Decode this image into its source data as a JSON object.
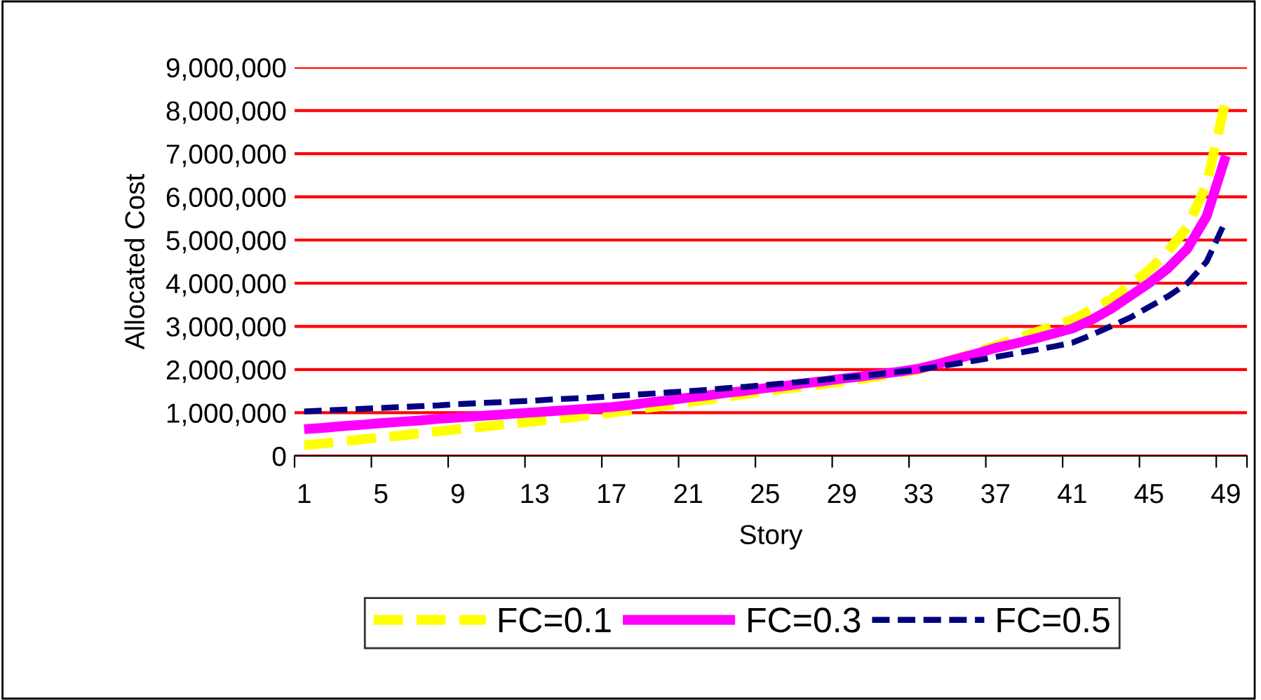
{
  "chart_data": {
    "type": "line",
    "xlabel": "Story",
    "ylabel": "Allocated Cost",
    "categories": [
      "1",
      null,
      null,
      null,
      "5",
      null,
      null,
      null,
      "9",
      null,
      null,
      null,
      "13",
      null,
      null,
      null,
      "17",
      null,
      null,
      null,
      "21",
      null,
      null,
      null,
      "25",
      null,
      null,
      null,
      "29",
      null,
      null,
      null,
      "33",
      null,
      null,
      null,
      "37",
      null,
      null,
      null,
      "41",
      null,
      null,
      null,
      "45",
      null,
      null,
      null,
      "49"
    ],
    "series": [
      {
        "name": "FC=0.1",
        "color": "#ffff00",
        "line_style": "dashed",
        "values": [
          250000,
          290000,
          340000,
          380000,
          430000,
          470000,
          520000,
          570000,
          620000,
          660000,
          710000,
          760000,
          800000,
          850000,
          900000,
          950000,
          1000000,
          1060000,
          1120000,
          1180000,
          1240000,
          1300000,
          1370000,
          1430000,
          1500000,
          1550000,
          1600000,
          1660000,
          1720000,
          1780000,
          1850000,
          1920000,
          2000000,
          2130000,
          2260000,
          2400000,
          2550000,
          2700000,
          2850000,
          3000000,
          3150000,
          3380000,
          3620000,
          3950000,
          4300000,
          4750000,
          5300000,
          6300000,
          8250000
        ]
      },
      {
        "name": "FC=0.3",
        "color": "#ff00ff",
        "line_style": "solid",
        "values": [
          620000,
          650000,
          690000,
          720000,
          760000,
          790000,
          820000,
          860000,
          890000,
          920000,
          950000,
          980000,
          1010000,
          1040000,
          1070000,
          1100000,
          1130000,
          1180000,
          1240000,
          1290000,
          1350000,
          1400000,
          1460000,
          1510000,
          1570000,
          1620000,
          1680000,
          1730000,
          1790000,
          1840000,
          1900000,
          1950000,
          2020000,
          2130000,
          2250000,
          2370000,
          2500000,
          2600000,
          2710000,
          2830000,
          2950000,
          3150000,
          3400000,
          3700000,
          4000000,
          4350000,
          4800000,
          5550000,
          6950000
        ]
      },
      {
        "name": "FC=0.5",
        "color": "#000080",
        "line_style": "dashed",
        "values": [
          1030000,
          1050000,
          1070000,
          1090000,
          1110000,
          1130000,
          1150000,
          1170000,
          1200000,
          1220000,
          1240000,
          1260000,
          1280000,
          1310000,
          1330000,
          1350000,
          1380000,
          1410000,
          1440000,
          1470000,
          1500000,
          1530000,
          1570000,
          1600000,
          1640000,
          1680000,
          1720000,
          1760000,
          1810000,
          1850000,
          1900000,
          1950000,
          2000000,
          2070000,
          2140000,
          2210000,
          2290000,
          2370000,
          2450000,
          2530000,
          2620000,
          2800000,
          3000000,
          3200000,
          3450000,
          3700000,
          4000000,
          4500000,
          5460000
        ]
      }
    ],
    "ylim": [
      0,
      9000000
    ],
    "yticks": [
      0,
      {
        "value": 1000000,
        "label": "1,000,000"
      },
      {
        "value": 2000000,
        "label": "2,000,000"
      },
      {
        "value": 3000000,
        "label": "3,000,000"
      },
      {
        "value": 4000000,
        "label": "4,000,000"
      },
      {
        "value": 5000000,
        "label": "5,000,000"
      },
      {
        "value": 6000000,
        "label": "6,000,000"
      },
      {
        "value": 7000000,
        "label": "7,000,000"
      },
      {
        "value": 8000000,
        "label": "8,000,000"
      },
      {
        "value": 9000000,
        "label": "9,000,000"
      }
    ],
    "grid": "y",
    "legend": "bottom",
    "marker": "none"
  }
}
